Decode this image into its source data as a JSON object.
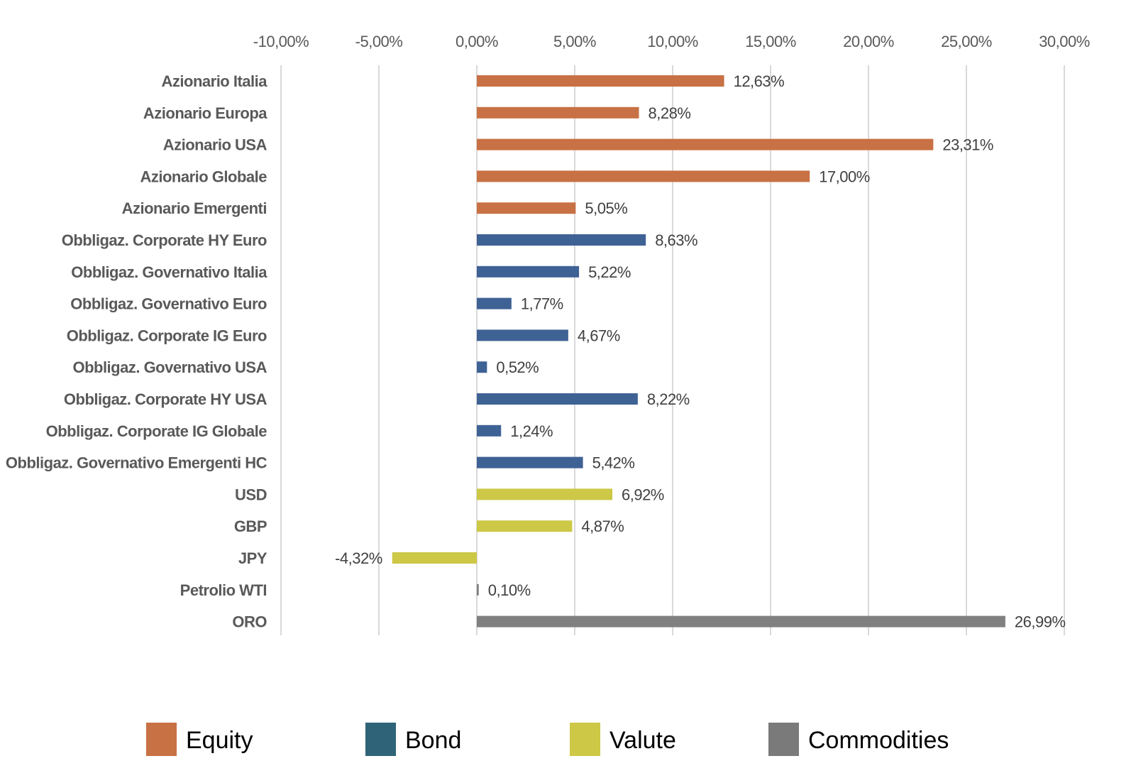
{
  "chart_data": {
    "type": "bar",
    "orientation": "horizontal",
    "xlim": [
      -10,
      30
    ],
    "x_ticks": [
      "-10,00%",
      "-5,00%",
      "0,00%",
      "5,00%",
      "10,00%",
      "15,00%",
      "20,00%",
      "25,00%",
      "30,00%"
    ],
    "x_tick_values": [
      -10,
      -5,
      0,
      5,
      10,
      15,
      20,
      25,
      30
    ],
    "grid": true,
    "legend_position": "bottom",
    "groups": [
      {
        "name": "Equity",
        "color": "#C87144"
      },
      {
        "name": "Bond",
        "color": "#3F6295"
      },
      {
        "name": "Valute",
        "color": "#CDC846"
      },
      {
        "name": "Commodities",
        "color": "#808080"
      }
    ],
    "categories": [
      {
        "label": "Azionario Italia",
        "value": 12.63,
        "display": "12,63%",
        "group": 0
      },
      {
        "label": "Azionario Europa",
        "value": 8.28,
        "display": "8,28%",
        "group": 0
      },
      {
        "label": "Azionario USA",
        "value": 23.31,
        "display": "23,31%",
        "group": 0
      },
      {
        "label": "Azionario Globale",
        "value": 17.0,
        "display": "17,00%",
        "group": 0
      },
      {
        "label": "Azionario Emergenti",
        "value": 5.05,
        "display": "5,05%",
        "group": 0
      },
      {
        "label": "Obbligaz. Corporate HY Euro",
        "value": 8.63,
        "display": "8,63%",
        "group": 1
      },
      {
        "label": "Obbligaz. Governativo Italia",
        "value": 5.22,
        "display": "5,22%",
        "group": 1
      },
      {
        "label": "Obbligaz. Governativo Euro",
        "value": 1.77,
        "display": "1,77%",
        "group": 1
      },
      {
        "label": "Obbligaz. Corporate IG Euro",
        "value": 4.67,
        "display": "4,67%",
        "group": 1
      },
      {
        "label": "Obbligaz. Governativo USA",
        "value": 0.52,
        "display": "0,52%",
        "group": 1
      },
      {
        "label": "Obbligaz. Corporate HY USA",
        "value": 8.22,
        "display": "8,22%",
        "group": 1
      },
      {
        "label": "Obbligaz. Corporate IG Globale",
        "value": 1.24,
        "display": "1,24%",
        "group": 1
      },
      {
        "label": "Obbligaz. Governativo Emergenti HC",
        "value": 5.42,
        "display": "5,42%",
        "group": 1
      },
      {
        "label": "USD",
        "value": 6.92,
        "display": "6,92%",
        "group": 2
      },
      {
        "label": "GBP",
        "value": 4.87,
        "display": "4,87%",
        "group": 2
      },
      {
        "label": "JPY",
        "value": -4.32,
        "display": "-4,32%",
        "group": 2
      },
      {
        "label": "Petrolio WTI",
        "value": 0.1,
        "display": "0,10%",
        "group": 3
      },
      {
        "label": "ORO",
        "value": 26.99,
        "display": "26,99%",
        "group": 3
      }
    ],
    "legend_swatch_colors": [
      "#C87144",
      "#2F6478",
      "#CDC846",
      "#7A7A7A"
    ]
  }
}
